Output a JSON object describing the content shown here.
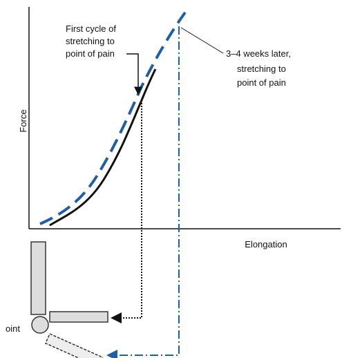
{
  "axes": {
    "y_label": "Force",
    "x_label": "Elongation"
  },
  "annotations": [
    {
      "lines": [
        "First cycle of",
        "stretching to",
        "point of pain"
      ]
    },
    {
      "lines": [
        "3–4 weeks later,",
        "stretching to",
        "point of pain"
      ]
    }
  ],
  "joint_label": "oint"
}
